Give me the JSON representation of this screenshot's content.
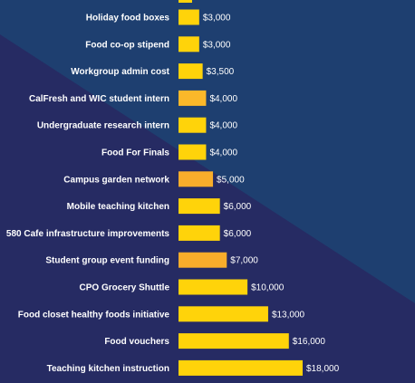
{
  "chart_data": {
    "type": "bar",
    "orientation": "horizontal",
    "title": "",
    "xlabel": "",
    "ylabel": "",
    "categories": [
      "Holiday food boxes",
      "Food co-op stipend",
      "Workgroup admin cost",
      "CalFresh and WIC student intern",
      "Undergraduate research intern",
      "Food For Finals",
      "Campus garden network",
      "Mobile teaching kitchen",
      "580 Cafe infrastructure improvements",
      "Student group event funding",
      "CPO Grocery Shuttle",
      "Food closet healthy foods initiative",
      "Food vouchers",
      "Teaching kitchen instruction"
    ],
    "values": [
      3000,
      3000,
      3500,
      4000,
      4000,
      4000,
      5000,
      6000,
      6000,
      7000,
      10000,
      13000,
      16000,
      18000
    ],
    "value_labels": [
      "$3,000",
      "$3,000",
      "$3,500",
      "$4,000",
      "$4,000",
      "$4,000",
      "$5,000",
      "$6,000",
      "$6,000",
      "$7,000",
      "$10,000",
      "$13,000",
      "$16,000",
      "$18,000"
    ],
    "bar_colors": [
      "#ffd30a",
      "#ffd30a",
      "#ffd30a",
      "#fbb82a",
      "#ffd30a",
      "#ffd30a",
      "#f9ad2b",
      "#ffd30a",
      "#ffd30a",
      "#f9ad2b",
      "#ffd30a",
      "#ffd30a",
      "#ffd30a",
      "#ffd30a"
    ],
    "partial_top_bar": true,
    "grid": false,
    "legend": "none"
  },
  "colors": {
    "background_dark": "#262b63",
    "background_band": "#1e3f70",
    "label_text": "#ffffff"
  }
}
